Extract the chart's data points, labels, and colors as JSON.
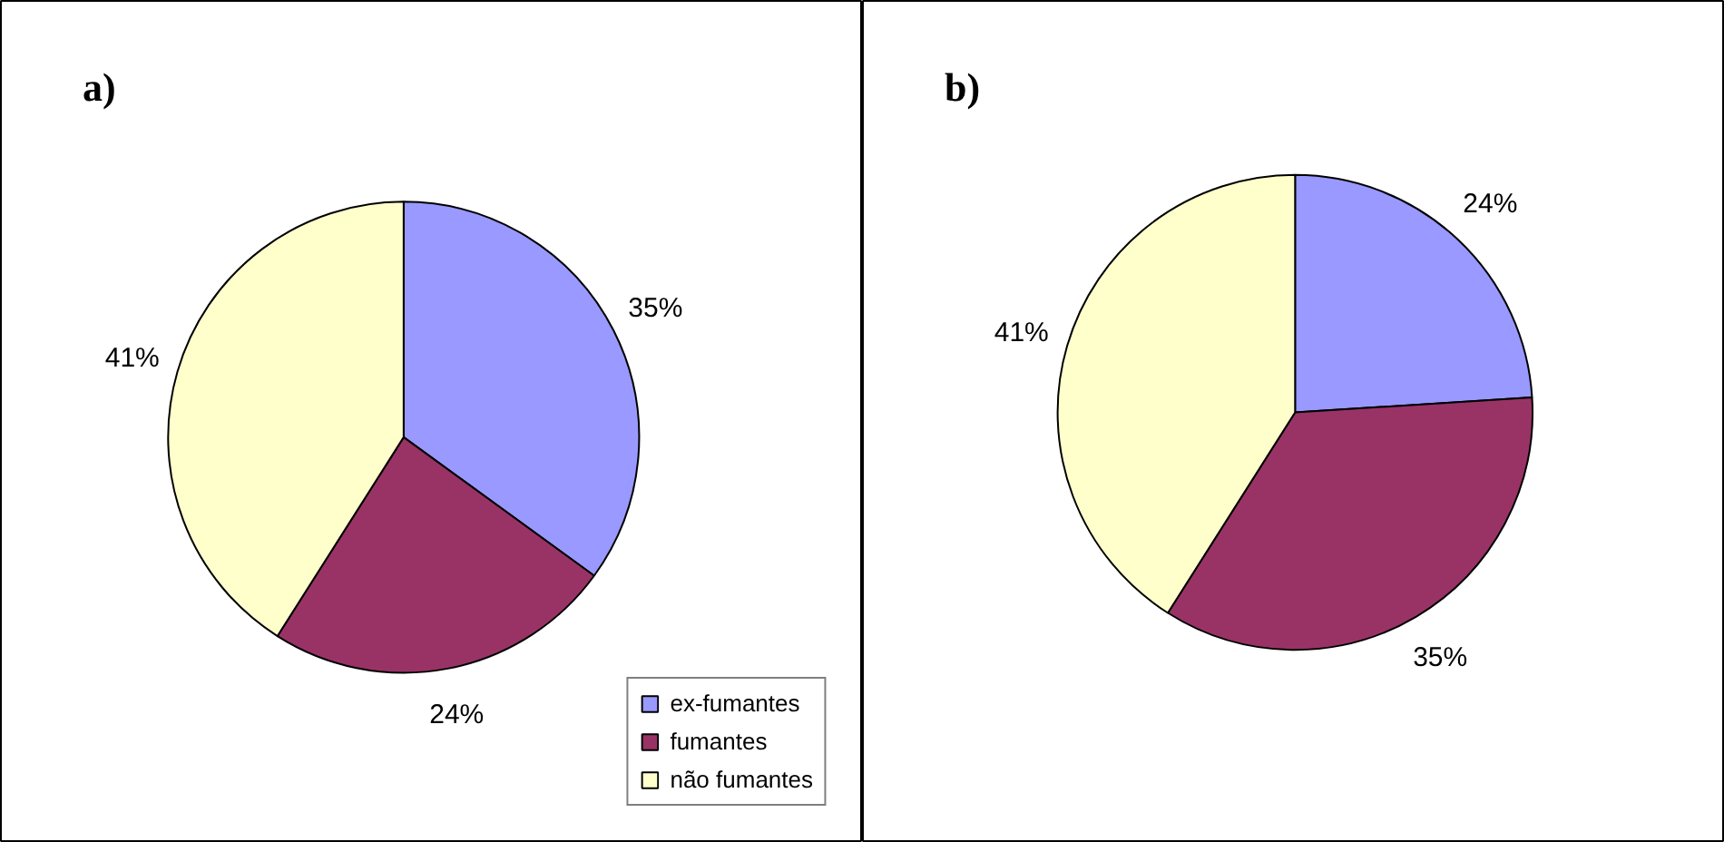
{
  "chart_data": [
    {
      "type": "pie",
      "title": "a)",
      "categories": [
        "ex-fumantes",
        "fumantes",
        "não fumantes"
      ],
      "values": [
        35,
        24,
        41
      ],
      "colors": [
        "#9999ff",
        "#993366",
        "#ffffcc"
      ],
      "value_labels": [
        "35%",
        "24%",
        "41%"
      ],
      "legend": "bottom right"
    },
    {
      "type": "pie",
      "title": "b)",
      "categories": [
        null,
        null,
        null
      ],
      "values": [
        24,
        35,
        41
      ],
      "colors": [
        "#9999ff",
        "#993366",
        "#ffffcc"
      ],
      "value_labels": [
        "24%",
        "35%",
        "41%"
      ]
    }
  ]
}
